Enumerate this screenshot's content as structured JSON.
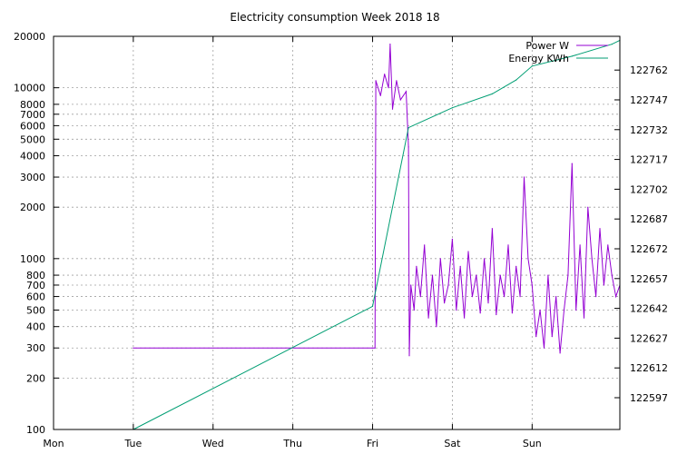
{
  "chart_data": {
    "type": "line",
    "title": "Electricity consumption Week 2018 18",
    "x_tick_labels": [
      "Mon",
      "Tue",
      "Wed",
      "Thu",
      "Fri",
      "Sat",
      "Sun"
    ],
    "y_left": {
      "scale": "log",
      "range": [
        100,
        20000
      ],
      "tick_values": [
        100,
        200,
        300,
        400,
        500,
        600,
        700,
        800,
        1000,
        2000,
        3000,
        4000,
        5000,
        6000,
        7000,
        8000,
        10000,
        20000
      ],
      "tick_labels": [
        "100",
        "200",
        "300",
        "400",
        "500",
        "600",
        "700",
        "800",
        "1000",
        "2000",
        "3000",
        "4000",
        "5000",
        "6000",
        "7000",
        "8000",
        "10000",
        "20000"
      ]
    },
    "y_right": {
      "scale": "linear",
      "range": [
        122581,
        122779
      ],
      "tick_values": [
        122597,
        122612,
        122627,
        122642,
        122657,
        122672,
        122687,
        122702,
        122717,
        122732,
        122747,
        122762
      ],
      "tick_labels": [
        "122597",
        "122612",
        "122627",
        "122642",
        "122657",
        "122672",
        "122687",
        "122702",
        "122717",
        "122732",
        "122747",
        "122762"
      ]
    },
    "grid": true,
    "legend": "top-right",
    "series": [
      {
        "name": "Power W",
        "axis": "left",
        "color": "#9400d3",
        "points": [
          [
            1.0,
            300
          ],
          [
            4.0,
            300
          ],
          [
            4.03,
            300
          ],
          [
            4.04,
            11000
          ],
          [
            4.1,
            9000
          ],
          [
            4.15,
            12000
          ],
          [
            4.2,
            10000
          ],
          [
            4.22,
            18000
          ],
          [
            4.25,
            7500
          ],
          [
            4.3,
            11000
          ],
          [
            4.35,
            8500
          ],
          [
            4.42,
            9500
          ],
          [
            4.45,
            4500
          ],
          [
            4.46,
            270
          ],
          [
            4.48,
            700
          ],
          [
            4.52,
            500
          ],
          [
            4.55,
            900
          ],
          [
            4.6,
            600
          ],
          [
            4.65,
            1200
          ],
          [
            4.7,
            450
          ],
          [
            4.75,
            800
          ],
          [
            4.8,
            400
          ],
          [
            4.85,
            1000
          ],
          [
            4.9,
            550
          ],
          [
            4.95,
            700
          ],
          [
            5.0,
            1300
          ],
          [
            5.05,
            500
          ],
          [
            5.1,
            900
          ],
          [
            5.15,
            450
          ],
          [
            5.2,
            1100
          ],
          [
            5.25,
            600
          ],
          [
            5.3,
            800
          ],
          [
            5.35,
            480
          ],
          [
            5.4,
            1000
          ],
          [
            5.45,
            550
          ],
          [
            5.5,
            1500
          ],
          [
            5.55,
            470
          ],
          [
            5.6,
            800
          ],
          [
            5.65,
            600
          ],
          [
            5.7,
            1200
          ],
          [
            5.75,
            480
          ],
          [
            5.8,
            900
          ],
          [
            5.85,
            600
          ],
          [
            5.9,
            3000
          ],
          [
            5.95,
            1000
          ],
          [
            6.0,
            700
          ],
          [
            6.05,
            350
          ],
          [
            6.1,
            500
          ],
          [
            6.15,
            300
          ],
          [
            6.2,
            800
          ],
          [
            6.25,
            350
          ],
          [
            6.3,
            600
          ],
          [
            6.35,
            280
          ],
          [
            6.4,
            500
          ],
          [
            6.45,
            800
          ],
          [
            6.5,
            3600
          ],
          [
            6.55,
            500
          ],
          [
            6.6,
            1200
          ],
          [
            6.65,
            450
          ],
          [
            6.7,
            2000
          ],
          [
            6.75,
            1000
          ],
          [
            6.8,
            600
          ],
          [
            6.85,
            1500
          ],
          [
            6.9,
            700
          ],
          [
            6.95,
            1200
          ],
          [
            7.0,
            800
          ],
          [
            7.05,
            600
          ],
          [
            7.1,
            700
          ]
        ]
      },
      {
        "name": "Energy KWh",
        "axis": "right",
        "color": "#009e73",
        "points": [
          [
            1.0,
            122581
          ],
          [
            4.0,
            122643
          ],
          [
            4.45,
            122733
          ],
          [
            5.0,
            122743
          ],
          [
            5.5,
            122750
          ],
          [
            5.8,
            122757
          ],
          [
            6.0,
            122764
          ],
          [
            6.5,
            122769
          ],
          [
            7.0,
            122775
          ],
          [
            7.1,
            122777
          ]
        ]
      }
    ]
  }
}
